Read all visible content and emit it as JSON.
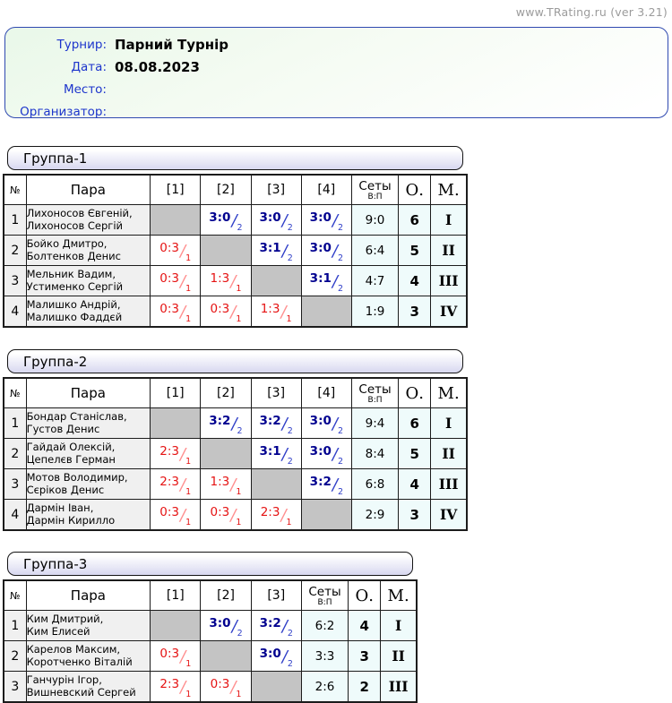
{
  "site": {
    "label": "www.TRating.ru (ver 3.21)"
  },
  "info": {
    "fields": [
      {
        "label": "Турнир:",
        "value": "Парний Турнір"
      },
      {
        "label": "Дата:",
        "value": "08.08.2023"
      },
      {
        "label": "Место:",
        "value": ""
      },
      {
        "label": "Организатор:",
        "value": ""
      }
    ]
  },
  "notation": {
    "slash": "/"
  },
  "table_headers": {
    "num": "№",
    "pair": "Пара",
    "sets": "Сеты",
    "sets_sub": "В:П",
    "points": "О.",
    "place": "М."
  },
  "groups": [
    {
      "title": "Группа-1",
      "opponent_cols": [
        "[1]",
        "[2]",
        "[3]",
        "[4]"
      ],
      "rows": [
        {
          "num": "1",
          "name1": "Лихоносов Євгеній,",
          "name2": "Лихоносов Сергій",
          "results": [
            null,
            {
              "score": "3:0",
              "pts": "2",
              "outcome": "win"
            },
            {
              "score": "3:0",
              "pts": "2",
              "outcome": "win"
            },
            {
              "score": "3:0",
              "pts": "2",
              "outcome": "win"
            }
          ],
          "sets": "9:0",
          "points": "6",
          "place": "I"
        },
        {
          "num": "2",
          "name1": "Бойко Дмитро,",
          "name2": "Болтенков Денис",
          "results": [
            {
              "score": "0:3",
              "pts": "1",
              "outcome": "loss"
            },
            null,
            {
              "score": "3:1",
              "pts": "2",
              "outcome": "win"
            },
            {
              "score": "3:0",
              "pts": "2",
              "outcome": "win"
            }
          ],
          "sets": "6:4",
          "points": "5",
          "place": "II"
        },
        {
          "num": "3",
          "name1": "Мельник Вадим,",
          "name2": "Устименко Сергій",
          "results": [
            {
              "score": "0:3",
              "pts": "1",
              "outcome": "loss"
            },
            {
              "score": "1:3",
              "pts": "1",
              "outcome": "loss"
            },
            null,
            {
              "score": "3:1",
              "pts": "2",
              "outcome": "win"
            }
          ],
          "sets": "4:7",
          "points": "4",
          "place": "III"
        },
        {
          "num": "4",
          "name1": "Малишко Андрій,",
          "name2": "Малишко Фаддєй",
          "results": [
            {
              "score": "0:3",
              "pts": "1",
              "outcome": "loss"
            },
            {
              "score": "0:3",
              "pts": "1",
              "outcome": "loss"
            },
            {
              "score": "1:3",
              "pts": "1",
              "outcome": "loss"
            },
            null
          ],
          "sets": "1:9",
          "points": "3",
          "place": "IV"
        }
      ]
    },
    {
      "title": "Группа-2",
      "opponent_cols": [
        "[1]",
        "[2]",
        "[3]",
        "[4]"
      ],
      "rows": [
        {
          "num": "1",
          "name1": "Бондар Станіслав,",
          "name2": "Густов Денис",
          "results": [
            null,
            {
              "score": "3:2",
              "pts": "2",
              "outcome": "win"
            },
            {
              "score": "3:2",
              "pts": "2",
              "outcome": "win"
            },
            {
              "score": "3:0",
              "pts": "2",
              "outcome": "win"
            }
          ],
          "sets": "9:4",
          "points": "6",
          "place": "I"
        },
        {
          "num": "2",
          "name1": "Гайдай Олексій,",
          "name2": "Цепелєв Герман",
          "results": [
            {
              "score": "2:3",
              "pts": "1",
              "outcome": "loss"
            },
            null,
            {
              "score": "3:1",
              "pts": "2",
              "outcome": "win"
            },
            {
              "score": "3:0",
              "pts": "2",
              "outcome": "win"
            }
          ],
          "sets": "8:4",
          "points": "5",
          "place": "II"
        },
        {
          "num": "3",
          "name1": "Мотов Володимир,",
          "name2": "Сєріков Денис",
          "results": [
            {
              "score": "2:3",
              "pts": "1",
              "outcome": "loss"
            },
            {
              "score": "1:3",
              "pts": "1",
              "outcome": "loss"
            },
            null,
            {
              "score": "3:2",
              "pts": "2",
              "outcome": "win"
            }
          ],
          "sets": "6:8",
          "points": "4",
          "place": "III"
        },
        {
          "num": "4",
          "name1": "Дармін Іван,",
          "name2": "Дармін Кирилло",
          "results": [
            {
              "score": "0:3",
              "pts": "1",
              "outcome": "loss"
            },
            {
              "score": "0:3",
              "pts": "1",
              "outcome": "loss"
            },
            {
              "score": "2:3",
              "pts": "1",
              "outcome": "loss"
            },
            null
          ],
          "sets": "2:9",
          "points": "3",
          "place": "IV"
        }
      ]
    },
    {
      "title": "Группа-3",
      "opponent_cols": [
        "[1]",
        "[2]",
        "[3]"
      ],
      "rows": [
        {
          "num": "1",
          "name1": "Ким Дмитрий,",
          "name2": "Ким Елисей",
          "results": [
            null,
            {
              "score": "3:0",
              "pts": "2",
              "outcome": "win"
            },
            {
              "score": "3:2",
              "pts": "2",
              "outcome": "win"
            }
          ],
          "sets": "6:2",
          "points": "4",
          "place": "I"
        },
        {
          "num": "2",
          "name1": "Карелов Максим,",
          "name2": "Коротченко Віталій",
          "results": [
            {
              "score": "0:3",
              "pts": "1",
              "outcome": "loss"
            },
            null,
            {
              "score": "3:0",
              "pts": "2",
              "outcome": "win"
            }
          ],
          "sets": "3:3",
          "points": "3",
          "place": "II"
        },
        {
          "num": "3",
          "name1": "Ганчурін Ігор,",
          "name2": "Вишневский Сергей",
          "results": [
            {
              "score": "2:3",
              "pts": "1",
              "outcome": "loss"
            },
            {
              "score": "0:3",
              "pts": "1",
              "outcome": "loss"
            },
            null
          ],
          "sets": "2:6",
          "points": "2",
          "place": "III"
        }
      ]
    }
  ]
}
